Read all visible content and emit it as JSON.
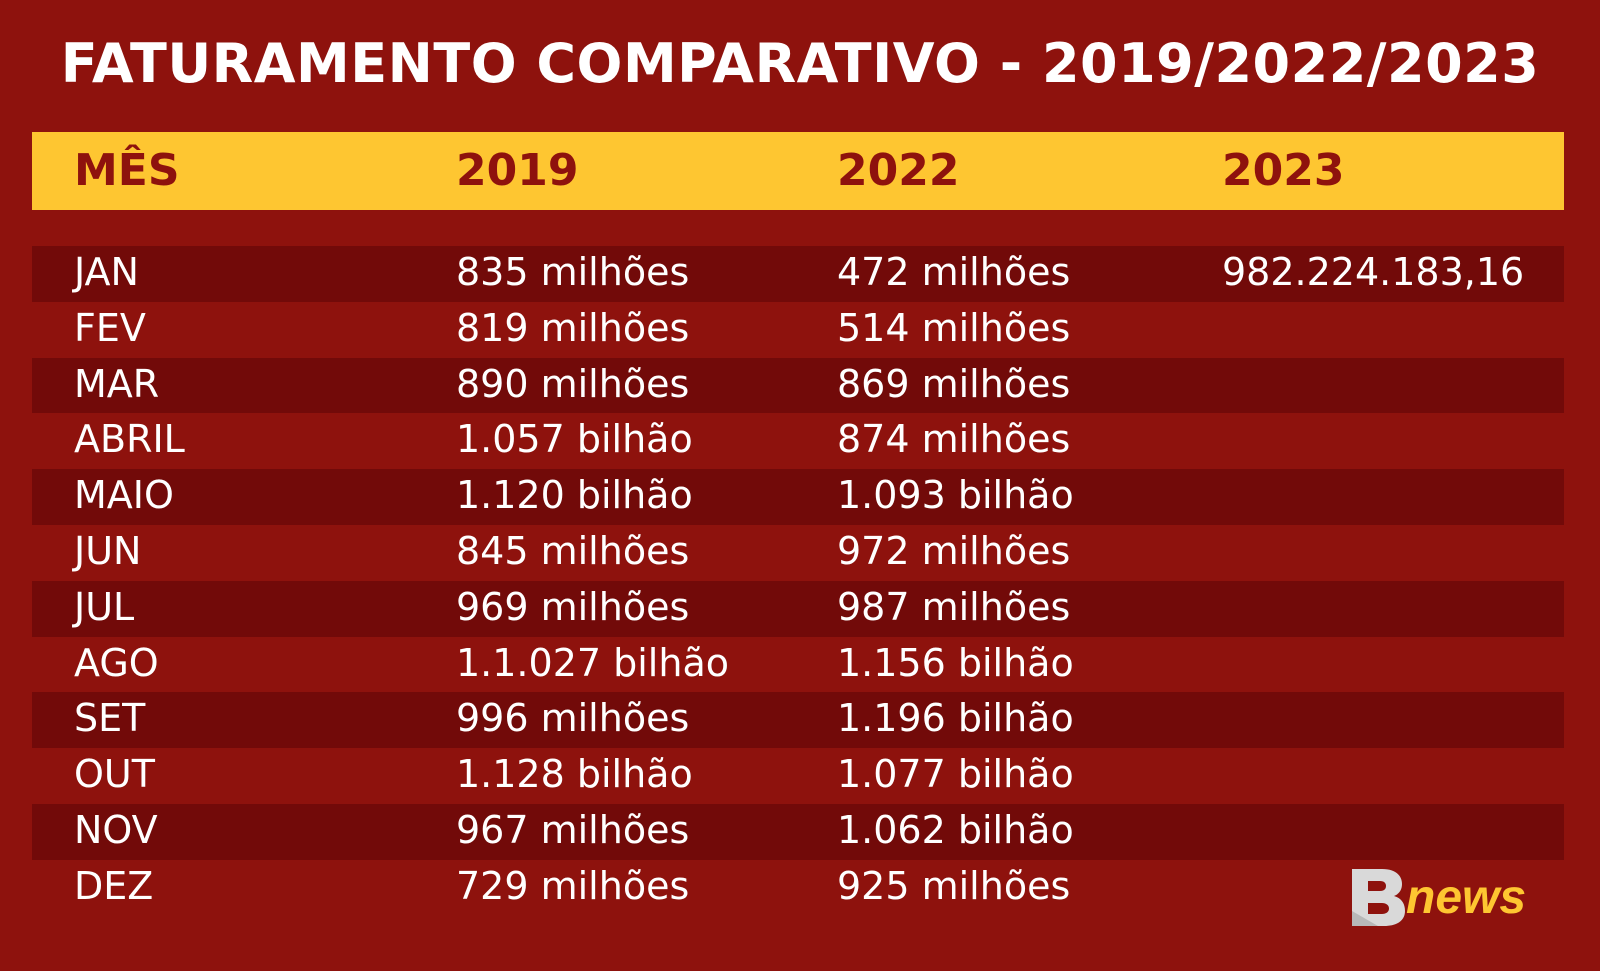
{
  "title": "FATURAMENTO COMPARATIVO - 2019/2022/2023",
  "colors": {
    "background": "#8e120d",
    "row_shade": "#720a09",
    "header_bg": "#fec631",
    "header_text": "#8e120d",
    "text": "#ffffff",
    "logo_yellow": "#fec631",
    "logo_grey": "#d9d9d9"
  },
  "logo": {
    "name": "bnews-logo",
    "text": "Bnews"
  },
  "chart_data": {
    "type": "table",
    "title": "FATURAMENTO COMPARATIVO - 2019/2022/2023",
    "columns": [
      "MÊS",
      "2019",
      "2022",
      "2023"
    ],
    "rows": [
      [
        "JAN",
        "835 milhões",
        "472 milhões",
        "982.224.183,16"
      ],
      [
        "FEV",
        "819 milhões",
        "514 milhões",
        ""
      ],
      [
        "MAR",
        "890 milhões",
        "869 milhões",
        ""
      ],
      [
        "ABRIL",
        "1.057 bilhão",
        "874 milhões",
        ""
      ],
      [
        "MAIO",
        "1.120 bilhão",
        "1.093 bilhão",
        ""
      ],
      [
        "JUN",
        "845 milhões",
        "972 milhões",
        ""
      ],
      [
        "JUL",
        "969 milhões",
        "987 milhões",
        ""
      ],
      [
        "AGO",
        "1.1.027 bilhão",
        "1.156 bilhão",
        ""
      ],
      [
        "SET",
        "996 milhões",
        "1.196 bilhão",
        ""
      ],
      [
        "OUT",
        "1.128 bilhão",
        "1.077 bilhão",
        ""
      ],
      [
        "NOV",
        "967 milhões",
        "1.062 bilhão",
        ""
      ],
      [
        "DEZ",
        "729 milhões",
        "925 milhões",
        ""
      ]
    ]
  }
}
